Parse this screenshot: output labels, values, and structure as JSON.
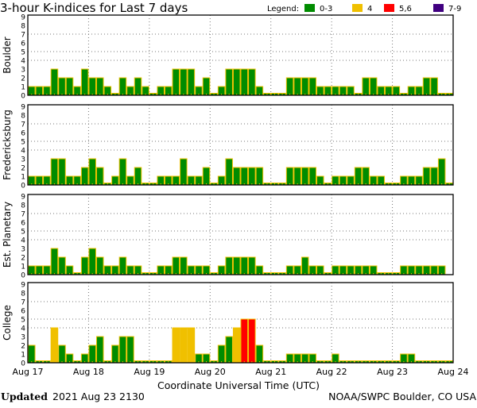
{
  "title": "3-hour K-indices for Last 7 days",
  "legend": {
    "label": "Legend:",
    "items": [
      {
        "label": "0-3",
        "color": "#008c00"
      },
      {
        "label": "4",
        "color": "#f0c000"
      },
      {
        "label": "5,6",
        "color": "#ff0000"
      },
      {
        "label": "7-9",
        "color": "#400080"
      }
    ]
  },
  "outline_color": "#f0c000",
  "x_axis": {
    "title": "Coordinate Universal Time (UTC)",
    "tick_labels": [
      "Aug 17",
      "Aug 18",
      "Aug 19",
      "Aug 20",
      "Aug 21",
      "Aug 22",
      "Aug 23",
      "Aug 24"
    ]
  },
  "footer": {
    "updated_label": "Updated",
    "updated_value": "2021 Aug 23 2130",
    "source": "NOAA/SWPC Boulder, CO USA"
  },
  "chart_data": [
    {
      "type": "bar",
      "ylabel": "Boulder",
      "ylim": [
        0,
        9
      ],
      "y_ticks": [
        "0",
        "1",
        "2",
        "3",
        "4",
        "5",
        "6",
        "7",
        "8",
        "9"
      ],
      "gridlines_y": [
        4,
        5,
        7
      ],
      "bars_per_day": 8,
      "values": [
        1,
        1,
        1,
        3,
        2,
        2,
        1,
        3,
        2,
        2,
        1,
        0,
        2,
        1,
        2,
        1,
        0,
        1,
        1,
        3,
        3,
        3,
        1,
        2,
        0,
        1,
        3,
        3,
        3,
        3,
        1,
        0,
        0,
        0,
        2,
        2,
        2,
        2,
        1,
        1,
        1,
        1,
        1,
        0,
        2,
        2,
        1,
        1,
        1,
        0,
        1,
        1,
        2,
        2,
        0,
        0
      ]
    },
    {
      "type": "bar",
      "ylabel": "Fredericksburg",
      "ylim": [
        0,
        9
      ],
      "y_ticks": [
        "0",
        "1",
        "2",
        "3",
        "4",
        "5",
        "6",
        "7",
        "8",
        "9"
      ],
      "gridlines_y": [
        4,
        5,
        7
      ],
      "bars_per_day": 8,
      "values": [
        1,
        1,
        1,
        3,
        3,
        1,
        1,
        2,
        3,
        2,
        0,
        1,
        3,
        1,
        2,
        0,
        0,
        1,
        1,
        1,
        3,
        1,
        1,
        2,
        0,
        1,
        3,
        2,
        2,
        2,
        2,
        0,
        0,
        0,
        2,
        2,
        2,
        2,
        1,
        0,
        1,
        1,
        1,
        2,
        2,
        1,
        1,
        0,
        0,
        1,
        1,
        1,
        2,
        2,
        3,
        0
      ]
    },
    {
      "type": "bar",
      "ylabel": "Est. Planetary",
      "ylim": [
        0,
        9
      ],
      "y_ticks": [
        "0",
        "1",
        "2",
        "3",
        "4",
        "5",
        "6",
        "7",
        "8",
        "9"
      ],
      "gridlines_y": [
        4,
        5,
        7
      ],
      "bars_per_day": 8,
      "values": [
        1,
        1,
        1,
        3,
        2,
        1,
        0,
        2,
        3,
        2,
        1,
        1,
        2,
        1,
        1,
        0,
        0,
        1,
        1,
        2,
        2,
        1,
        1,
        1,
        0,
        1,
        2,
        2,
        2,
        2,
        1,
        0,
        0,
        0,
        1,
        1,
        2,
        1,
        1,
        0,
        1,
        1,
        1,
        1,
        1,
        1,
        0,
        0,
        0,
        1,
        1,
        1,
        1,
        1,
        1,
        null
      ]
    },
    {
      "type": "bar",
      "ylabel": "College",
      "ylim": [
        0,
        9
      ],
      "y_ticks": [
        "0",
        "1",
        "2",
        "3",
        "4",
        "5",
        "6",
        "7",
        "8",
        "9"
      ],
      "gridlines_y": [
        4,
        5,
        7
      ],
      "bars_per_day": 8,
      "values": [
        2,
        0,
        0,
        4,
        2,
        1,
        0,
        1,
        2,
        3,
        0,
        2,
        3,
        3,
        0,
        0,
        0,
        0,
        0,
        4,
        4,
        4,
        1,
        1,
        0,
        2,
        3,
        4,
        5,
        5,
        2,
        0,
        0,
        0,
        1,
        1,
        1,
        1,
        0,
        0,
        1,
        0,
        0,
        0,
        0,
        0,
        0,
        0,
        0,
        1,
        1,
        0,
        0,
        0,
        0,
        0
      ]
    }
  ]
}
